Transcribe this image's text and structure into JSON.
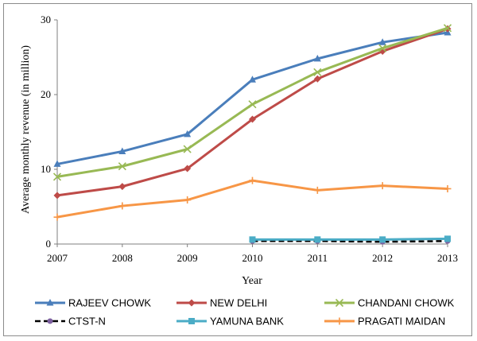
{
  "chart_data": {
    "type": "line",
    "xlabel": "Year",
    "ylabel": "Average monthly revenue (in million)",
    "x": [
      "2007",
      "2008",
      "2009",
      "2010",
      "2011",
      "2012",
      "2013"
    ],
    "ylim": [
      0,
      30
    ],
    "yticks": [
      "0",
      "10",
      "20",
      "30"
    ],
    "grid": false,
    "legend_position": "bottom",
    "series": [
      {
        "name": "RAJEEV CHOWK",
        "color": "#4a7ebb",
        "marker": "triangle",
        "values": [
          10.7,
          12.4,
          14.7,
          22.0,
          24.8,
          27.0,
          28.3
        ]
      },
      {
        "name": "NEW DELHI",
        "color": "#be4b48",
        "marker": "diamond",
        "values": [
          6.5,
          7.7,
          10.1,
          16.7,
          22.1,
          25.8,
          28.8
        ]
      },
      {
        "name": "CHANDANI CHOWK",
        "color": "#98b954",
        "marker": "x",
        "values": [
          9.0,
          10.4,
          12.7,
          18.7,
          23.0,
          26.2,
          28.9
        ]
      },
      {
        "name": "CTST-N",
        "color": "#000000",
        "marker": "circle",
        "dashed": true,
        "values": [
          null,
          null,
          null,
          0.4,
          0.4,
          0.3,
          0.4
        ]
      },
      {
        "name": "YAMUNA BANK",
        "color": "#4bacc6",
        "marker": "square",
        "values": [
          null,
          null,
          null,
          0.6,
          0.6,
          0.6,
          0.7
        ]
      },
      {
        "name": "PRAGATI MAIDAN",
        "color": "#f79646",
        "marker": "plus",
        "values": [
          3.6,
          5.1,
          5.9,
          8.5,
          7.2,
          7.8,
          7.4
        ]
      }
    ]
  }
}
